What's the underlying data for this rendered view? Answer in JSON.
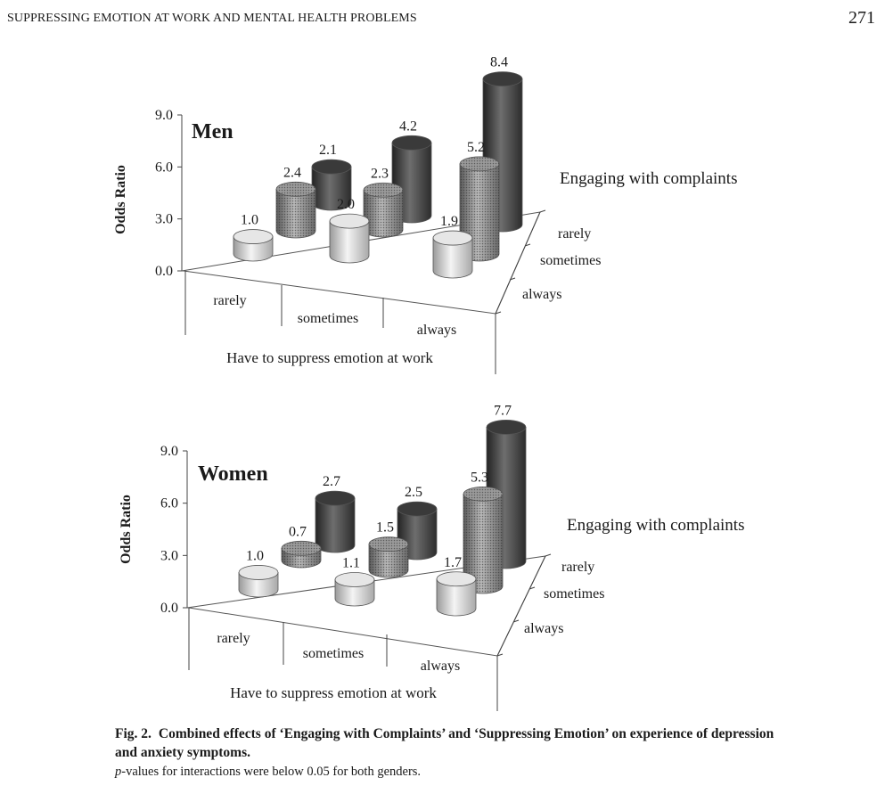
{
  "header": {
    "running_head": "SUPPRESSING EMOTION AT WORK AND MENTAL HEALTH PROBLEMS",
    "page_number": "271"
  },
  "chart_data": [
    {
      "type": "bar",
      "title": "Men",
      "ylabel": "Odds Ratio",
      "xlabel": "Have to suppress emotion at work",
      "zlabel": "Engaging with complaints",
      "ylim": [
        0,
        9
      ],
      "yticks": [
        "0.0",
        "3.0",
        "6.0",
        "9.0"
      ],
      "categories": [
        "rarely",
        "sometimes",
        "always"
      ],
      "series": [
        {
          "name": "rarely",
          "values": [
            1.0,
            2.0,
            1.9
          ],
          "labels": [
            "1.0",
            "2.0",
            "1.9"
          ]
        },
        {
          "name": "sometimes",
          "values": [
            2.4,
            2.3,
            5.2
          ],
          "labels": [
            "2.4",
            "2.3",
            "5.2"
          ]
        },
        {
          "name": "always",
          "values": [
            2.1,
            4.2,
            8.4
          ],
          "labels": [
            "2.1",
            "4.2",
            "8.4"
          ]
        }
      ],
      "grid": false,
      "colors": {
        "rarely": "#d9d9d9",
        "sometimes": "#8c8c8c",
        "always": "#4a4a4a"
      }
    },
    {
      "type": "bar",
      "title": "Women",
      "ylabel": "Odds Ratio",
      "xlabel": "Have to suppress emotion at work",
      "zlabel": "Engaging with complaints",
      "ylim": [
        0,
        9
      ],
      "yticks": [
        "0.0",
        "3.0",
        "6.0",
        "9.0"
      ],
      "categories": [
        "rarely",
        "sometimes",
        "always"
      ],
      "series": [
        {
          "name": "rarely",
          "values": [
            1.0,
            1.1,
            1.7
          ],
          "labels": [
            "1.0",
            "1.1",
            "1.7"
          ]
        },
        {
          "name": "sometimes",
          "values": [
            0.7,
            1.5,
            5.3
          ],
          "labels": [
            "0.7",
            "1.5",
            "5.3"
          ]
        },
        {
          "name": "always",
          "values": [
            2.7,
            2.5,
            7.7
          ],
          "labels": [
            "2.7",
            "2.5",
            "7.7"
          ]
        }
      ],
      "grid": false,
      "colors": {
        "rarely": "#d9d9d9",
        "sometimes": "#8c8c8c",
        "always": "#4a4a4a"
      }
    }
  ],
  "caption": {
    "label": "Fig. 2.",
    "title": "Combined effects of ‘Engaging with Complaints’ and ‘Suppressing Emotion’ on experience of depression and anxiety symptoms.",
    "note_italic": "p",
    "note_rest": "-values for interactions were below 0.05 for both genders."
  }
}
